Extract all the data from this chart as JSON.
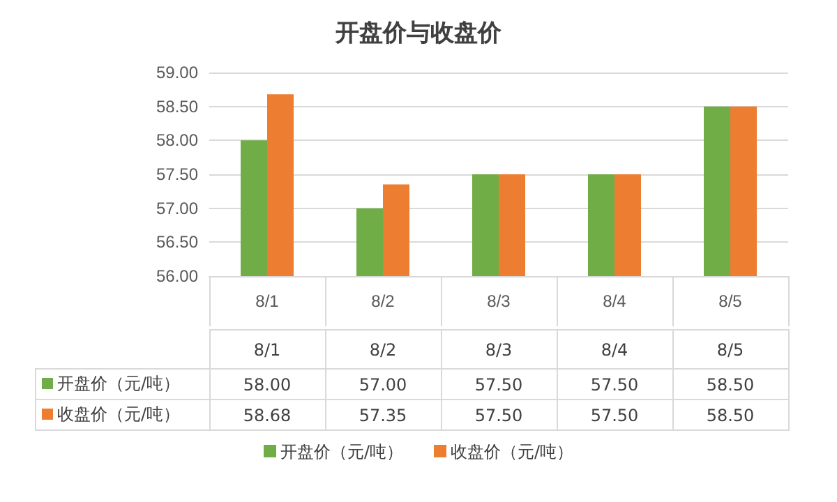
{
  "chart_data": {
    "type": "bar",
    "title": "开盘价与收盘价",
    "categories": [
      "8/1",
      "8/2",
      "8/3",
      "8/4",
      "8/5"
    ],
    "series": [
      {
        "name": "开盘价（元/吨）",
        "color": "#70ad47",
        "values": [
          58.0,
          57.0,
          57.5,
          57.5,
          58.5
        ],
        "value_labels": [
          "58.00",
          "57.00",
          "57.50",
          "57.50",
          "58.50"
        ]
      },
      {
        "name": "收盘价（元/吨）",
        "color": "#ed7d31",
        "values": [
          58.68,
          57.35,
          57.5,
          57.5,
          58.5
        ],
        "value_labels": [
          "58.68",
          "57.35",
          "57.50",
          "57.50",
          "58.50"
        ]
      }
    ],
    "ylim": [
      56,
      59
    ],
    "yticks": [
      {
        "value": 56,
        "label": "56.00"
      },
      {
        "value": 56.5,
        "label": "56.50"
      },
      {
        "value": 57,
        "label": "57.00"
      },
      {
        "value": 57.5,
        "label": "57.50"
      },
      {
        "value": 58,
        "label": "58.00"
      },
      {
        "value": 58.5,
        "label": "58.50"
      },
      {
        "value": 59,
        "label": "59.00"
      }
    ],
    "grid": "y",
    "legend": "bottom"
  }
}
